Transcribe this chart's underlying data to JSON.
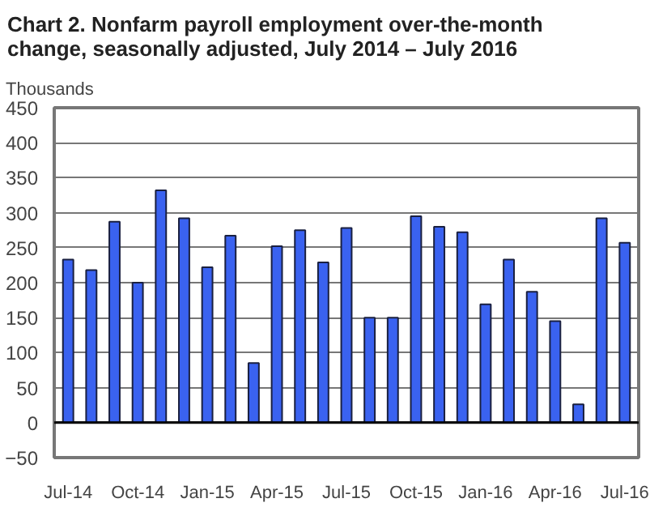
{
  "chart_data": {
    "type": "bar",
    "title": "Chart 2. Nonfarm payroll employment over-the-month\nchange, seasonally adjusted, July 2014 – July 2016",
    "ylabel": "Thousands",
    "categories": [
      "Jul-14",
      null,
      null,
      "Oct-14",
      null,
      null,
      "Jan-15",
      null,
      null,
      "Apr-15",
      null,
      null,
      "Jul-15",
      null,
      null,
      "Oct-15",
      null,
      null,
      "Jan-16",
      null,
      null,
      "Apr-16",
      null,
      null,
      "Jul-16"
    ],
    "values": [
      233,
      218,
      287,
      200,
      332,
      292,
      222,
      267,
      85,
      252,
      275,
      229,
      278,
      150,
      150,
      295,
      280,
      272,
      169,
      233,
      187,
      145,
      26,
      292,
      257
    ],
    "color": "#3a62f0",
    "ylim": [
      -50,
      450
    ],
    "yticks": [
      -50,
      0,
      50,
      100,
      150,
      200,
      250,
      300,
      350,
      400,
      450
    ],
    "grid": "y"
  }
}
